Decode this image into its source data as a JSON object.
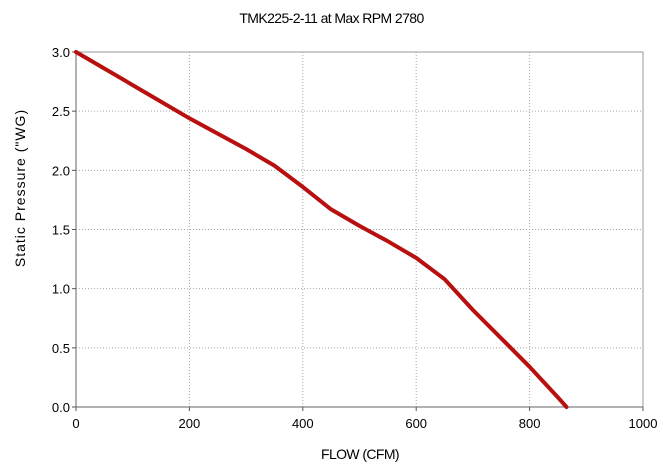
{
  "chart_data": {
    "type": "line",
    "title": "TMK225-2-11 at Max RPM 2780",
    "xlabel": "FLOW (CFM)",
    "ylabel": "Static Pressure (\"WG)",
    "xlim": [
      0,
      1000
    ],
    "ylim": [
      0,
      3.0
    ],
    "x_ticks": [
      "0",
      "200",
      "400",
      "600",
      "800",
      "1000"
    ],
    "y_ticks": [
      "0.0",
      "0.5",
      "1.0",
      "1.5",
      "2.0",
      "2.5",
      "3.0"
    ],
    "grid": true,
    "series": [
      {
        "color": "#b80f0f",
        "x": [
          0,
          100,
          200,
          300,
          350,
          400,
          450,
          500,
          550,
          600,
          650,
          700,
          750,
          800,
          850,
          865
        ],
        "y": [
          3.0,
          2.72,
          2.44,
          2.18,
          2.04,
          1.86,
          1.67,
          1.53,
          1.4,
          1.26,
          1.08,
          0.82,
          0.58,
          0.34,
          0.08,
          0.0
        ]
      }
    ]
  }
}
